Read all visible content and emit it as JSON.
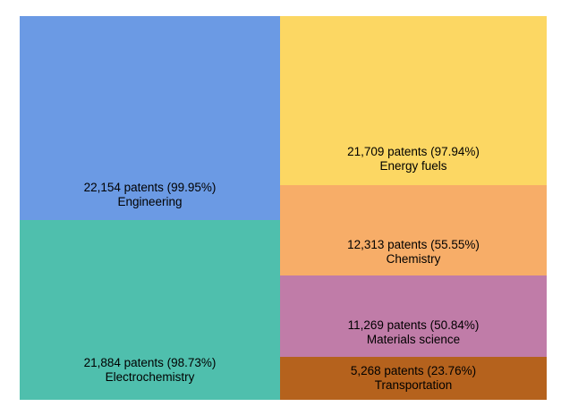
{
  "chart_data": {
    "type": "treemap",
    "title": "",
    "legend": "none",
    "unit": "patents",
    "tiles": [
      {
        "id": "engineering",
        "label": "Engineering",
        "patents": 22154,
        "percent": 99.95,
        "value_text": "22,154 patents (99.95%)",
        "color": "#6b9ae4"
      },
      {
        "id": "electrochemistry",
        "label": "Electrochemistry",
        "patents": 21884,
        "percent": 98.73,
        "value_text": "21,884 patents (98.73%)",
        "color": "#4fbfad"
      },
      {
        "id": "energy-fuels",
        "label": "Energy fuels",
        "patents": 21709,
        "percent": 97.94,
        "value_text": "21,709 patents (97.94%)",
        "color": "#fcd763"
      },
      {
        "id": "chemistry",
        "label": "Chemistry",
        "patents": 12313,
        "percent": 55.55,
        "value_text": "12,313 patents (55.55%)",
        "color": "#f7ad68"
      },
      {
        "id": "materials-science",
        "label": "Materials science",
        "patents": 11269,
        "percent": 50.84,
        "value_text": "11,269 patents (50.84%)",
        "color": "#c07ca8"
      },
      {
        "id": "transportation",
        "label": "Transportation",
        "patents": 5268,
        "percent": 23.76,
        "value_text": "5,268 patents (23.76%)",
        "color": "#b5621d"
      }
    ],
    "text_color": "#000000",
    "background_color": "#ffffff"
  }
}
